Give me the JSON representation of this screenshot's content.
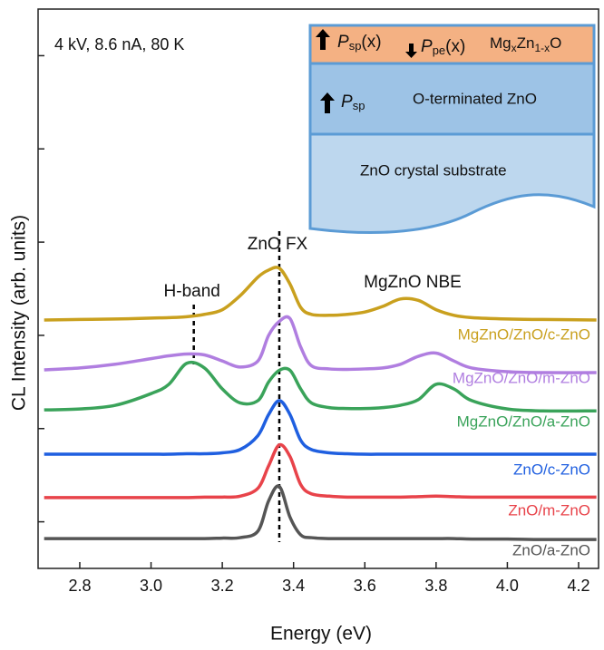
{
  "chart_data": {
    "type": "line",
    "xlabel": "Energy (eV)",
    "ylabel": "CL Intensity (arb. units)",
    "condition": "4 kV, 8.6 nA, 80 K",
    "xlim": [
      2.683,
      4.256
    ],
    "xticks": [
      2.8,
      {
        "value": 3,
        "label": "3.0"
      },
      3.2,
      3.4,
      3.6,
      3.8,
      {
        "value": 4,
        "label": "4.0"
      },
      4.2
    ],
    "ylim": [
      0,
      12
    ],
    "yticks": [
      1,
      3,
      5,
      7,
      9,
      11
    ],
    "x": [
      2.7,
      2.8,
      2.9,
      3.0,
      3.05,
      3.1,
      3.15,
      3.2,
      3.25,
      3.3,
      3.33,
      3.36,
      3.39,
      3.42,
      3.45,
      3.5,
      3.55,
      3.6,
      3.65,
      3.7,
      3.75,
      3.8,
      3.85,
      3.9,
      4.0,
      4.1,
      4.25
    ],
    "series": [
      {
        "name": "MgZnO/ZnO/c-ZnO",
        "color": "#c9a01e",
        "values": [
          5.33,
          5.34,
          5.35,
          5.37,
          5.38,
          5.4,
          5.45,
          5.55,
          5.85,
          6.25,
          6.4,
          6.44,
          6.1,
          5.6,
          5.45,
          5.43,
          5.45,
          5.5,
          5.62,
          5.78,
          5.75,
          5.55,
          5.43,
          5.38,
          5.35,
          5.34,
          5.33
        ]
      },
      {
        "name": "MgZnO/ZnO/m-ZnO",
        "color": "#b07ee0",
        "values": [
          4.26,
          4.3,
          4.38,
          4.5,
          4.56,
          4.6,
          4.58,
          4.45,
          4.32,
          4.45,
          5.0,
          5.3,
          5.36,
          4.75,
          4.35,
          4.28,
          4.27,
          4.28,
          4.3,
          4.38,
          4.55,
          4.62,
          4.45,
          4.3,
          4.22,
          4.2,
          4.2
        ]
      },
      {
        "name": "MgZnO/ZnO/a-ZnO",
        "color": "#3aa35a",
        "values": [
          3.4,
          3.42,
          3.5,
          3.75,
          3.95,
          4.4,
          4.3,
          3.85,
          3.55,
          3.6,
          4.0,
          4.25,
          4.25,
          3.85,
          3.55,
          3.45,
          3.43,
          3.43,
          3.45,
          3.5,
          3.62,
          3.95,
          3.85,
          3.6,
          3.42,
          3.38,
          3.38
        ]
      },
      {
        "name": "ZnO/c-ZnO",
        "color": "#1f5fe0",
        "values": [
          2.45,
          2.45,
          2.45,
          2.45,
          2.45,
          2.46,
          2.46,
          2.48,
          2.55,
          2.85,
          3.3,
          3.6,
          3.3,
          2.75,
          2.55,
          2.48,
          2.46,
          2.45,
          2.45,
          2.45,
          2.45,
          2.45,
          2.45,
          2.45,
          2.45,
          2.45,
          2.45
        ]
      },
      {
        "name": "ZnO/m-ZnO",
        "color": "#e8434a",
        "values": [
          1.52,
          1.52,
          1.52,
          1.52,
          1.52,
          1.52,
          1.53,
          1.53,
          1.55,
          1.72,
          2.2,
          2.65,
          2.4,
          1.8,
          1.6,
          1.55,
          1.53,
          1.53,
          1.53,
          1.53,
          1.54,
          1.55,
          1.54,
          1.53,
          1.53,
          1.53,
          1.53
        ]
      },
      {
        "name": "ZnO/a-ZnO",
        "color": "#555555",
        "values": [
          0.64,
          0.64,
          0.64,
          0.64,
          0.64,
          0.64,
          0.64,
          0.65,
          0.66,
          0.8,
          1.45,
          1.76,
          1.1,
          0.72,
          0.66,
          0.64,
          0.64,
          0.64,
          0.64,
          0.64,
          0.64,
          0.64,
          0.64,
          0.63,
          0.63,
          0.62,
          0.62
        ]
      }
    ],
    "markers": [
      {
        "label": "ZnO FX",
        "x": 3.36
      },
      {
        "label": "H-band",
        "x": 3.12
      }
    ],
    "annotation": "MgZnO NBE",
    "inset": {
      "top_psp": [
        "P",
        "sp",
        "(x)"
      ],
      "top_ppe": [
        "P",
        "pe",
        "(x)"
      ],
      "top_material": [
        "Mg",
        "x",
        "Zn",
        "1-x",
        "O"
      ],
      "middle_psp": [
        "P",
        "sp"
      ],
      "middle_label": "O-terminated ZnO",
      "bottom_label": "ZnO crystal substrate"
    }
  }
}
